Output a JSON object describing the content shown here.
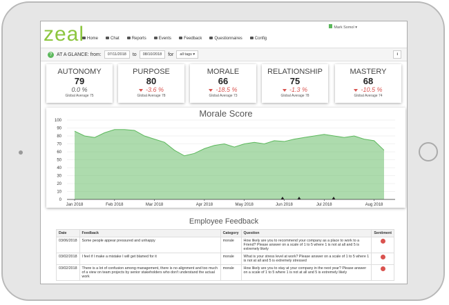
{
  "nav": {
    "logo": "zeal",
    "items": [
      "Home",
      "Chat",
      "Reports",
      "Events",
      "Feedback",
      "Questionnaires",
      "Config"
    ],
    "user": "Mark Somol"
  },
  "glance": {
    "label": "AT A GLANCE: from:",
    "from": "07/11/2018",
    "to_label": "to",
    "to": "08/10/2018",
    "for_label": "for",
    "tags": "all tags"
  },
  "kpis": [
    {
      "name": "AUTONOMY",
      "value": "79",
      "change": "0.0 %",
      "average": "Global Average 75"
    },
    {
      "name": "PURPOSE",
      "value": "80",
      "change": "-3.6 %",
      "average": "Global Average 78"
    },
    {
      "name": "MORALE",
      "value": "66",
      "change": "-18.5 %",
      "average": "Global Average 73"
    },
    {
      "name": "RELATIONSHIP",
      "value": "75",
      "change": "-1.3 %",
      "average": "Global Average 78"
    },
    {
      "name": "MASTERY",
      "value": "68",
      "change": "-10.5 %",
      "average": "Global Average 74"
    }
  ],
  "chart_data": {
    "type": "area",
    "title": "Morale Score",
    "categories": [
      "Jan 2018",
      null,
      null,
      null,
      "Feb 2018",
      null,
      null,
      null,
      "Mar 2018",
      null,
      null,
      null,
      null,
      "Apr 2018",
      null,
      null,
      null,
      "May 2018",
      null,
      null,
      null,
      "Jun 2018",
      null,
      null,
      null,
      "Jul 2018",
      null,
      null,
      null,
      null,
      "Aug 2018",
      null
    ],
    "series": [
      {
        "name": "Morale",
        "color": "#5cb85c",
        "values": [
          86,
          80,
          78,
          84,
          88,
          88,
          87,
          80,
          76,
          72,
          62,
          55,
          58,
          64,
          68,
          70,
          66,
          70,
          72,
          70,
          74,
          73,
          76,
          78,
          80,
          82,
          80,
          78,
          80,
          76,
          74,
          62
        ]
      }
    ],
    "ylim": [
      0,
      100
    ],
    "yticks": [
      0,
      10,
      20,
      30,
      40,
      50,
      60,
      70,
      80,
      90,
      100
    ],
    "grid": true
  },
  "feedback": {
    "title": "Employee Feedback",
    "headers": [
      "Date",
      "Feedback",
      "Category",
      "Question",
      "Sentiment"
    ],
    "rows": [
      [
        "03/06/2018",
        "Some people appear pressured and unhappy",
        "morale",
        "How likely are you to recommend your company as a place to work to a Friend? Please answer on a scale of 1 to 5 where 1 is not at all and 5 is extremely likely"
      ],
      [
        "03/02/2018",
        "I feel if I make a mistake I will get blamed for it",
        "morale",
        "What is your stress level at work? Please answer on a scale of 1 to 5 where 1 is not at all and 5 is extremely stressed"
      ],
      [
        "03/02/2018",
        "There is a lot of confusion among management, there is no alignment and too much of a view on team projects by senior stakeholders who don't understand the actual work",
        "morale",
        "How likely are you to stay at your company in the next year? Please answer on a scale of 1 to 5 where 1 is not at all and 5 is extremely likely"
      ]
    ]
  }
}
